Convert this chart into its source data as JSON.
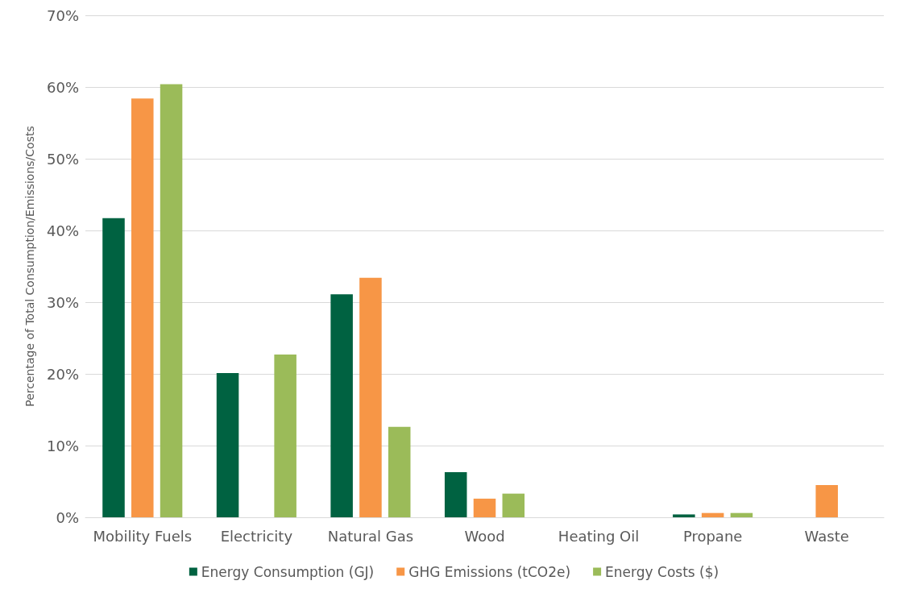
{
  "chart_data": {
    "type": "bar",
    "ylabel": "Percentage of Total Consumption/Emissions/Costs",
    "categories": [
      "Mobility Fuels",
      "Electricity",
      "Natural Gas",
      "Wood",
      "Heating Oil",
      "Propane",
      "Waste"
    ],
    "series": [
      {
        "name": "Energy Consumption (GJ)",
        "color": "#006241",
        "values": [
          41.7,
          20.1,
          31.1,
          6.3,
          0,
          0.4,
          0
        ]
      },
      {
        "name": "GHG Emissions (tCO2e)",
        "color": "#f79646",
        "values": [
          58.4,
          0,
          33.4,
          2.6,
          0,
          0.6,
          4.5
        ]
      },
      {
        "name": "Energy Costs ($)",
        "color": "#9bbb59",
        "values": [
          60.4,
          22.7,
          12.6,
          3.3,
          0,
          0.6,
          0
        ]
      }
    ],
    "ylim": [
      0,
      70
    ],
    "yticks": [
      {
        "value": 0,
        "label": "0%"
      },
      {
        "value": 10,
        "label": "10%"
      },
      {
        "value": 20,
        "label": "20%"
      },
      {
        "value": 30,
        "label": "30%"
      },
      {
        "value": 40,
        "label": "40%"
      },
      {
        "value": 50,
        "label": "50%"
      },
      {
        "value": 60,
        "label": "60%"
      },
      {
        "value": 70,
        "label": "70%"
      }
    ],
    "grid": "y",
    "legend": "bottom"
  }
}
